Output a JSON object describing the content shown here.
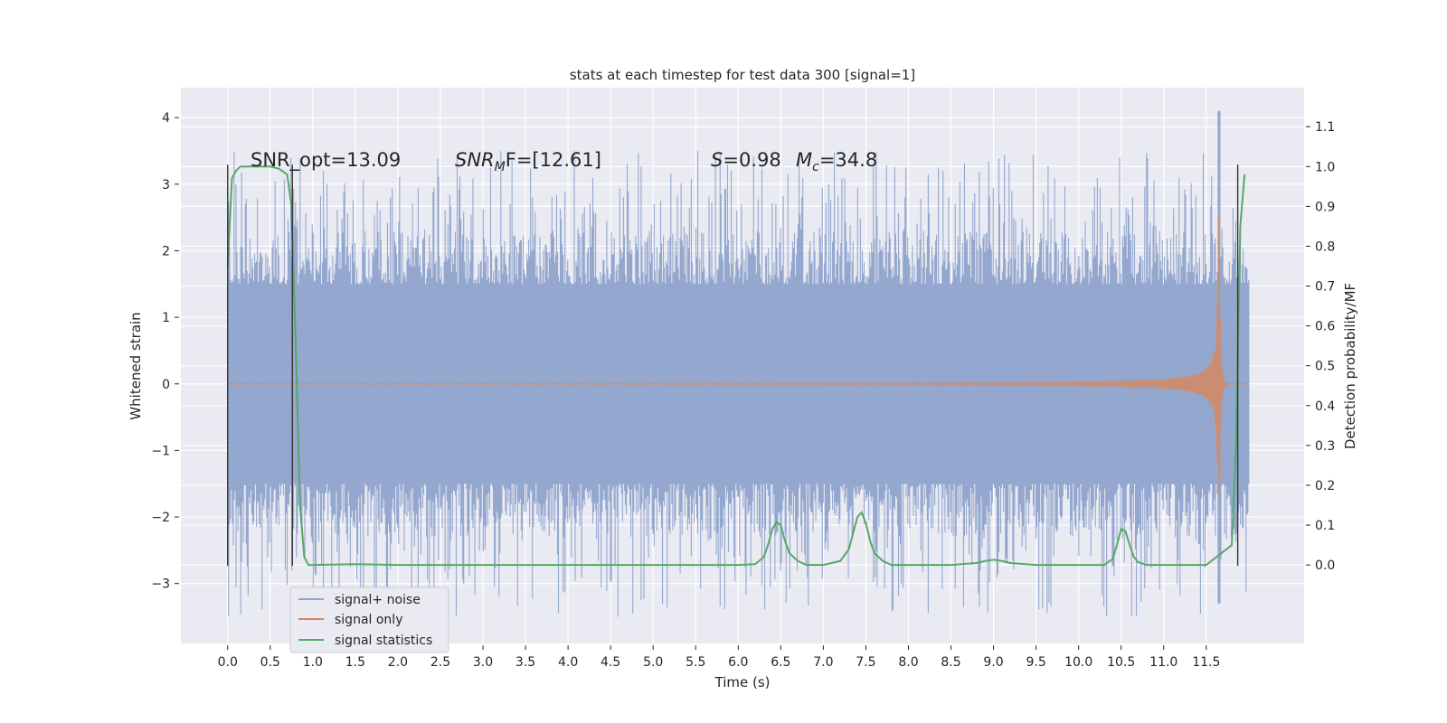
{
  "chart_data": {
    "type": "line",
    "title": "stats at each timestep for test data 300 [signal=1]",
    "xlabel": "Time (s)",
    "ylabel": "Whitened strain",
    "y2label": "Detection probability/MF",
    "xlim": [
      -0.55,
      12.65
    ],
    "ylim": [
      -3.9,
      4.45
    ],
    "y2lim": [
      -0.197,
      1.198
    ],
    "x_ticks": [
      "0.0",
      "0.5",
      "1.0",
      "1.5",
      "2.0",
      "2.5",
      "3.0",
      "3.5",
      "4.0",
      "4.5",
      "5.0",
      "5.5",
      "6.0",
      "6.5",
      "7.0",
      "7.5",
      "8.0",
      "8.5",
      "9.0",
      "9.5",
      "10.0",
      "10.5",
      "11.0",
      "11.5"
    ],
    "y_ticks": [
      "4",
      "3",
      "2",
      "1",
      "0",
      "−1",
      "−2",
      "−3"
    ],
    "y2_ticks": [
      "1.1",
      "1.0",
      "0.9",
      "0.8",
      "0.7",
      "0.6",
      "0.5",
      "0.4",
      "0.3",
      "0.2",
      "0.1",
      "0.0"
    ],
    "annotations": {
      "snr_opt": "SNR_opt=13.09",
      "snr_mf_sym": "SNR",
      "snr_mf_sub": "M",
      "snr_mf_rest": "F=[12.61]",
      "s_sym": "S",
      "s_rest": "=0.98",
      "mc_sym": "M",
      "mc_sub": "c",
      "mc_rest": "=34.8"
    },
    "legend_position": "lower-left",
    "grid": true,
    "series": [
      {
        "name": "signal+ noise",
        "color": "#8fa4cc",
        "description": "noisy whitened strain, approx. uniform noise band within ±1.5 with spikes to ±3.5, spike at 11.65 s reaching 4.1",
        "x_range": [
          0.0,
          12.0
        ],
        "noise_band": [
          -1.5,
          1.5
        ],
        "max_spike": 4.1
      },
      {
        "name": "signal only",
        "color": "#dd8452",
        "description": "chirp signal, flat near 0 until ~6 s, growing oscillation to 11.65 s peak of 2.7",
        "x_range": [
          0.0,
          12.0
        ],
        "peak": [
          11.65,
          2.7
        ]
      },
      {
        "name": "signal statistics",
        "color": "#55a868",
        "axis": "right",
        "x": [
          0.0,
          0.05,
          0.1,
          0.15,
          0.2,
          0.3,
          0.4,
          0.5,
          0.6,
          0.7,
          0.75,
          0.8,
          0.85,
          0.9,
          0.95,
          1.0,
          1.5,
          2.0,
          3.0,
          4.0,
          5.0,
          6.0,
          6.2,
          6.3,
          6.35,
          6.4,
          6.45,
          6.5,
          6.55,
          6.6,
          6.7,
          6.8,
          7.0,
          7.2,
          7.3,
          7.35,
          7.4,
          7.45,
          7.5,
          7.55,
          7.6,
          7.7,
          7.8,
          8.0,
          8.5,
          8.8,
          8.9,
          9.0,
          9.1,
          9.2,
          9.5,
          10.0,
          10.3,
          10.4,
          10.45,
          10.5,
          10.55,
          10.6,
          10.65,
          10.7,
          10.8,
          11.0,
          11.5,
          11.8,
          11.85,
          11.9,
          11.95
        ],
        "y": [
          0.75,
          0.97,
          0.99,
          1.0,
          1.0,
          1.0,
          1.0,
          1.0,
          0.995,
          0.98,
          0.9,
          0.55,
          0.15,
          0.02,
          0.0,
          0.0,
          0.002,
          0.0,
          0.0,
          0.0,
          0.0,
          0.0,
          0.002,
          0.02,
          0.05,
          0.09,
          0.108,
          0.1,
          0.06,
          0.03,
          0.01,
          0.0,
          0.0,
          0.01,
          0.04,
          0.08,
          0.12,
          0.132,
          0.105,
          0.06,
          0.03,
          0.01,
          0.0,
          0.0,
          0.0,
          0.005,
          0.01,
          0.013,
          0.01,
          0.005,
          0.0,
          0.0,
          0.0,
          0.015,
          0.05,
          0.09,
          0.085,
          0.05,
          0.02,
          0.007,
          0.0,
          0.0,
          0.0,
          0.05,
          0.3,
          0.85,
          0.98
        ]
      }
    ],
    "segment_markers": [
      0.0,
      0.76,
      11.87
    ]
  }
}
